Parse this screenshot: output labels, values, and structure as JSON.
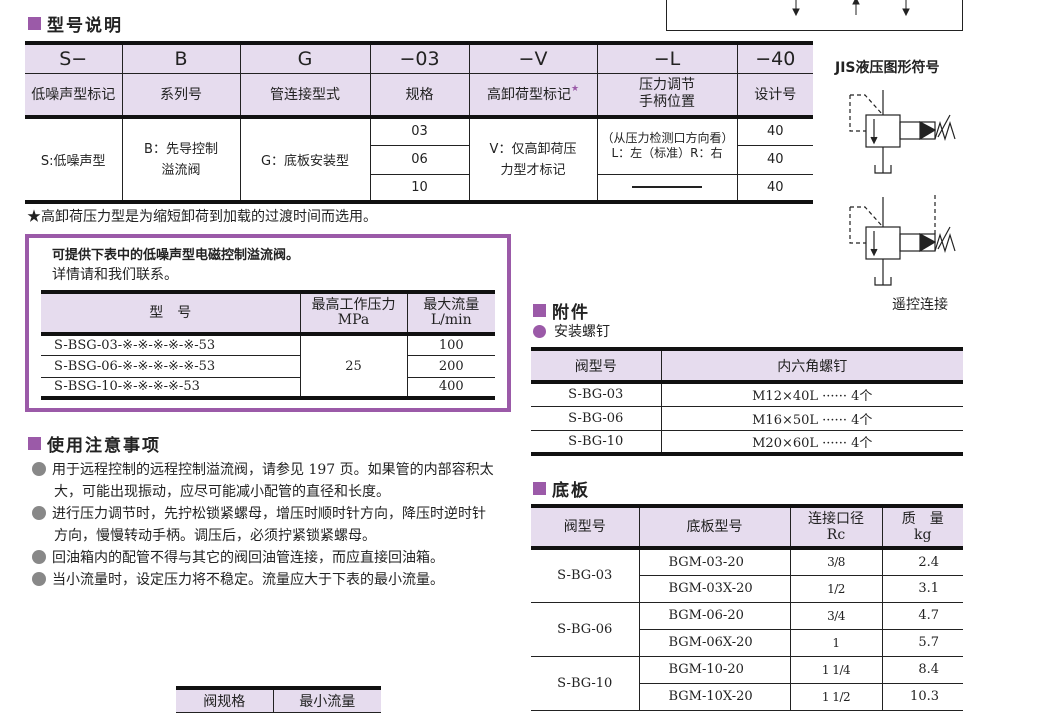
{
  "colors": {
    "accent": "#9b5aa8",
    "header_bg": "#e6dcee"
  },
  "model": {
    "title": "型号说明",
    "codes": [
      "S−",
      "B",
      "G",
      "−03",
      "−V",
      "−L",
      "−40"
    ],
    "labels": [
      "低噪声型标记",
      "系列号",
      "管连接型式",
      "规格",
      "高卸荷型标记",
      "压力调节\n手柄位置",
      "设计号"
    ],
    "star": "★",
    "desc": {
      "s": "S:低噪声型",
      "b": "B：先导控制\n溢流阀",
      "g": "G：底板安装型",
      "sizes": [
        "03",
        "06",
        "10"
      ],
      "v": "V：仅高卸荷压\n力型才标记",
      "l_note": "（从压力检测口方向看）",
      "l": "L：左（标准）R：右",
      "design": [
        "40",
        "40",
        "40"
      ]
    },
    "footnote": "★高卸荷压力型是为缩短卸荷到加载的过渡时间而选用。"
  },
  "jis": {
    "title": "JIS液压图形符号",
    "remote": "遥控连接"
  },
  "lownoise": {
    "line1": "可提供下表中的低噪声型电磁控制溢流阀。",
    "line2": "详情请和我们联系。",
    "headers": [
      "型　号",
      "最高工作压力\nMPa",
      "最大流量\nL/min"
    ],
    "rows": [
      {
        "model": "S-BSG-03-※-※-※-※-※-53",
        "flow": "100"
      },
      {
        "model": "S-BSG-06-※-※-※-※-※-53",
        "flow": "200"
      },
      {
        "model": "S-BSG-10-※-※-※-※-53",
        "flow": "400"
      }
    ],
    "pressure": "25"
  },
  "cautions": {
    "title": "使用注意事项",
    "items": [
      "用于远程控制的远程控制溢流阀，请参见 197 页。如果管的内部容积太大，可能出现振动，应尽可能减小配管的直径和长度。",
      "进行压力调节时，先拧松锁紧螺母，增压时顺时针方向，降压时逆时针方向，慢慢转动手柄。调压后，必须拧紧锁紧螺母。",
      "回油箱内的配管不得与其它的阀回油管连接，而应直接回油箱。",
      "当小流量时，设定压力将不稳定。流量应大于下表的最小流量。"
    ],
    "min_headers": [
      "阀规格",
      "最小流量"
    ]
  },
  "accessory": {
    "title": "附件",
    "sub": "安装螺钉",
    "headers": [
      "阀型号",
      "内六角螺钉"
    ],
    "rows": [
      [
        "S-BG-03",
        "M12×40L ······ 4个"
      ],
      [
        "S-BG-06",
        "M16×50L ······ 4个"
      ],
      [
        "S-BG-10",
        "M20×60L ······ 4个"
      ]
    ]
  },
  "base": {
    "title": "底板",
    "headers": [
      "阀型号",
      "底板型号",
      "连接口径\nRc",
      "质　量\nkg"
    ],
    "groups": [
      {
        "valve": "S-BG-03",
        "rows": [
          [
            "BGM-03-20",
            "3/8",
            "2.4"
          ],
          [
            "BGM-03X-20",
            "1/2",
            "3.1"
          ]
        ]
      },
      {
        "valve": "S-BG-06",
        "rows": [
          [
            "BGM-06-20",
            "3/4",
            "4.7"
          ],
          [
            "BGM-06X-20",
            "1",
            "5.7"
          ]
        ]
      },
      {
        "valve": "S-BG-10",
        "rows": [
          [
            "BGM-10-20",
            "1 1/4",
            "8.4"
          ],
          [
            "BGM-10X-20",
            "1 1/2",
            "10.3"
          ]
        ]
      }
    ]
  }
}
